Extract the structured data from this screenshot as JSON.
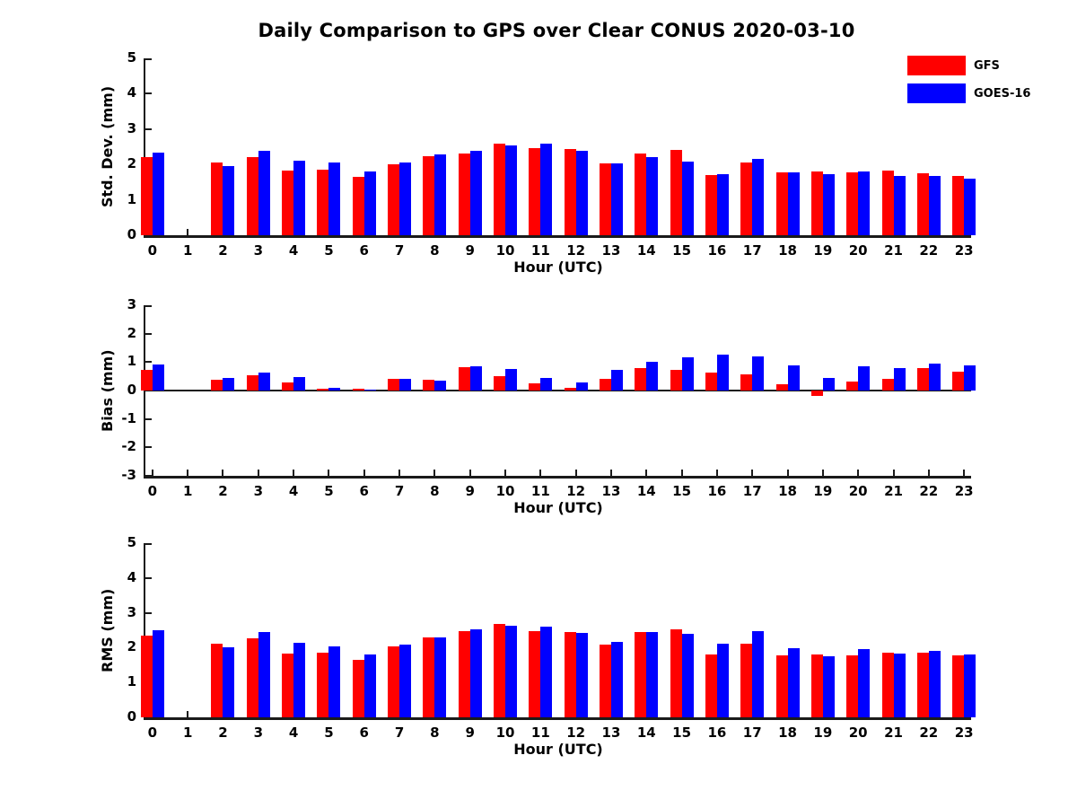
{
  "figure": {
    "title": "Daily Comparison to GPS over Clear CONUS 2020-03-10"
  },
  "legend": {
    "entries": [
      {
        "name": "gfs",
        "label": "GFS",
        "color": "#ff0000"
      },
      {
        "name": "goes16",
        "label": "GOES-16",
        "color": "#0000ff"
      }
    ]
  },
  "colors": {
    "gfs": "#ff0000",
    "goes16": "#0000ff",
    "axis": "#1a1a1a"
  },
  "chart_data": [
    {
      "type": "bar",
      "name": "stddev",
      "ylabel": "Std. Dev. (mm)",
      "xlabel": "Hour (UTC)",
      "ylim": [
        0,
        5
      ],
      "yticks": [
        0,
        1,
        2,
        3,
        4,
        5
      ],
      "categories": [
        0,
        1,
        2,
        3,
        4,
        5,
        6,
        7,
        8,
        9,
        10,
        11,
        12,
        13,
        14,
        15,
        16,
        17,
        18,
        19,
        20,
        21,
        22,
        23
      ],
      "legend_position": "outside-top-right",
      "grid": false,
      "series": [
        {
          "name": "GFS",
          "color": "#ff0000",
          "values": [
            2.2,
            null,
            2.05,
            2.2,
            1.82,
            1.85,
            1.65,
            2.0,
            2.23,
            2.3,
            2.59,
            2.47,
            2.44,
            2.03,
            2.3,
            2.4,
            1.69,
            2.05,
            1.78,
            1.81,
            1.77,
            1.82,
            1.74,
            1.68
          ]
        },
        {
          "name": "GOES-16",
          "color": "#0000ff",
          "values": [
            2.33,
            null,
            1.95,
            2.38,
            2.1,
            2.05,
            1.8,
            2.06,
            2.28,
            2.39,
            2.53,
            2.58,
            2.39,
            2.03,
            2.2,
            2.07,
            1.73,
            2.17,
            1.78,
            1.72,
            1.79,
            1.67,
            1.68,
            1.6
          ]
        }
      ]
    },
    {
      "type": "bar",
      "name": "bias",
      "ylabel": "Bias (mm)",
      "xlabel": "Hour (UTC)",
      "ylim": [
        -3,
        3
      ],
      "yticks": [
        -3,
        -2,
        -1,
        0,
        1,
        2,
        3
      ],
      "categories": [
        0,
        1,
        2,
        3,
        4,
        5,
        6,
        7,
        8,
        9,
        10,
        11,
        12,
        13,
        14,
        15,
        16,
        17,
        18,
        19,
        20,
        21,
        22,
        23
      ],
      "grid": false,
      "series": [
        {
          "name": "GFS",
          "color": "#ff0000",
          "values": [
            0.72,
            null,
            0.38,
            0.55,
            0.28,
            0.07,
            0.06,
            0.42,
            0.38,
            0.82,
            0.51,
            0.25,
            0.08,
            0.4,
            0.78,
            0.72,
            0.62,
            0.58,
            0.22,
            -0.2,
            0.32,
            0.4,
            0.78,
            0.65
          ]
        },
        {
          "name": "GOES-16",
          "color": "#0000ff",
          "values": [
            0.92,
            null,
            0.44,
            0.63,
            0.46,
            0.1,
            0.02,
            0.4,
            0.35,
            0.85,
            0.77,
            0.45,
            0.28,
            0.74,
            1.02,
            1.18,
            1.27,
            1.2,
            0.88,
            0.45,
            0.85,
            0.78,
            0.95,
            0.88
          ]
        }
      ]
    },
    {
      "type": "bar",
      "name": "rms",
      "ylabel": "RMS (mm)",
      "xlabel": "Hour (UTC)",
      "ylim": [
        0,
        5
      ],
      "yticks": [
        0,
        1,
        2,
        3,
        4,
        5
      ],
      "categories": [
        0,
        1,
        2,
        3,
        4,
        5,
        6,
        7,
        8,
        9,
        10,
        11,
        12,
        13,
        14,
        15,
        16,
        17,
        18,
        19,
        20,
        21,
        22,
        23
      ],
      "grid": false,
      "series": [
        {
          "name": "GFS",
          "color": "#ff0000",
          "values": [
            2.34,
            null,
            2.12,
            2.27,
            1.84,
            1.86,
            1.65,
            2.04,
            2.29,
            2.48,
            2.68,
            2.48,
            2.45,
            2.08,
            2.45,
            2.52,
            1.81,
            2.12,
            1.78,
            1.81,
            1.79,
            1.86,
            1.86,
            1.78
          ]
        },
        {
          "name": "GOES-16",
          "color": "#0000ff",
          "values": [
            2.5,
            null,
            2.01,
            2.46,
            2.15,
            2.04,
            1.8,
            2.09,
            2.3,
            2.53,
            2.64,
            2.6,
            2.43,
            2.16,
            2.45,
            2.4,
            2.12,
            2.47,
            1.98,
            1.76,
            1.95,
            1.84,
            1.92,
            1.8
          ]
        }
      ]
    }
  ]
}
